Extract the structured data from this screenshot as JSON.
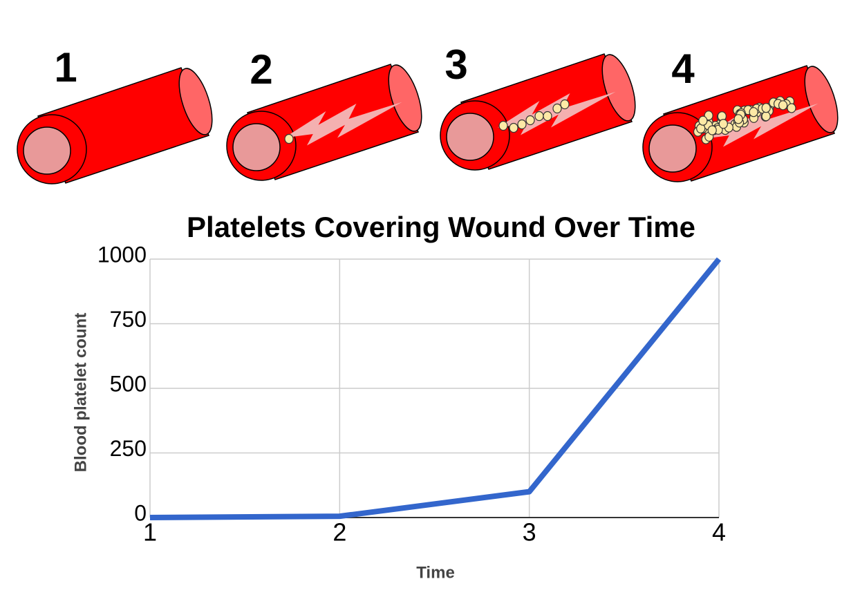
{
  "illustration": {
    "labels": [
      "1",
      "2",
      "3",
      "4"
    ]
  },
  "chart_data": {
    "type": "line",
    "title": "Platelets Covering Wound Over Time",
    "x_label": "Time",
    "y_label": "Blood platelet count",
    "x": [
      1,
      2,
      3,
      4
    ],
    "series": [
      {
        "name": "Blood platelet count",
        "color": "#3366cc",
        "values": [
          0,
          5,
          100,
          1000
        ]
      }
    ],
    "xlim": [
      1,
      4
    ],
    "ylim": [
      0,
      1000
    ],
    "xticks": [
      1,
      2,
      3,
      4
    ],
    "yticks": [
      0,
      250,
      500,
      750,
      1000
    ],
    "grid": true
  }
}
